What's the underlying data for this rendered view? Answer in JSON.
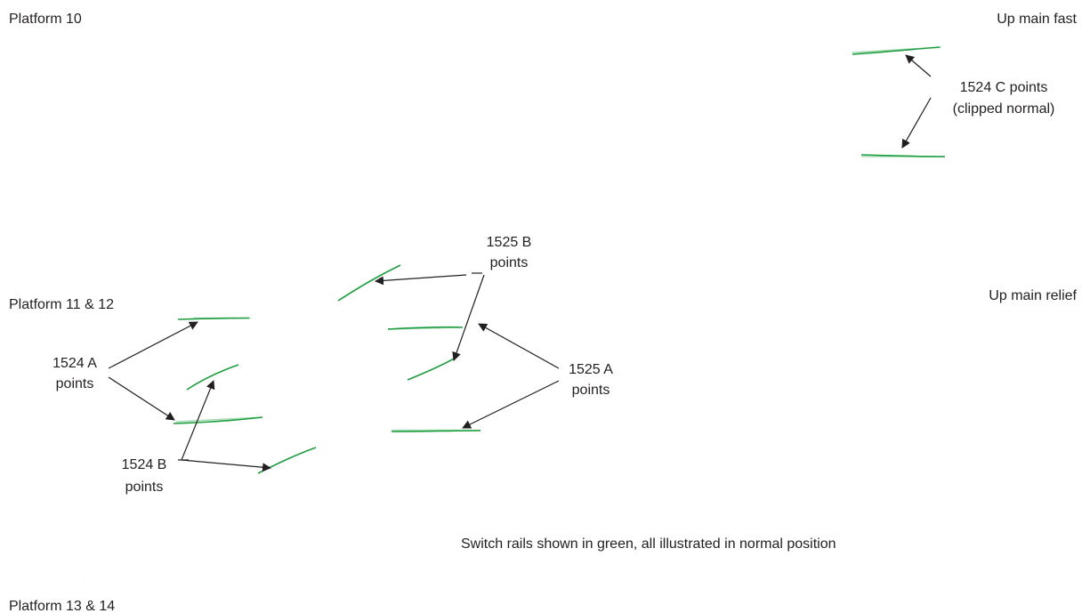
{
  "labels": {
    "platform_10": "Platform 10",
    "up_main_fast": "Up main fast",
    "platform_11_12": "Platform 11 & 12",
    "up_main_relief": "Up main relief",
    "platform_13_14": "Platform 13 & 14",
    "points_1524c_line1": "1524 C points",
    "points_1524c_line2": "(clipped normal)",
    "points_1525b_line1": "1525 B",
    "points_1525b_line2": "points",
    "points_1524a_line1": "1524 A",
    "points_1524a_line2": "points",
    "points_1525a_line1": "1525 A",
    "points_1525a_line2": "points",
    "points_1524b_line1": "1524 B",
    "points_1524b_line2": "points",
    "caption": "Switch rails shown in green, all illustrated in normal position"
  },
  "colors": {
    "rail": "#231f20",
    "switch_rail": "#1f9e3f",
    "switch_rail_zone": "#a8dbb7"
  }
}
